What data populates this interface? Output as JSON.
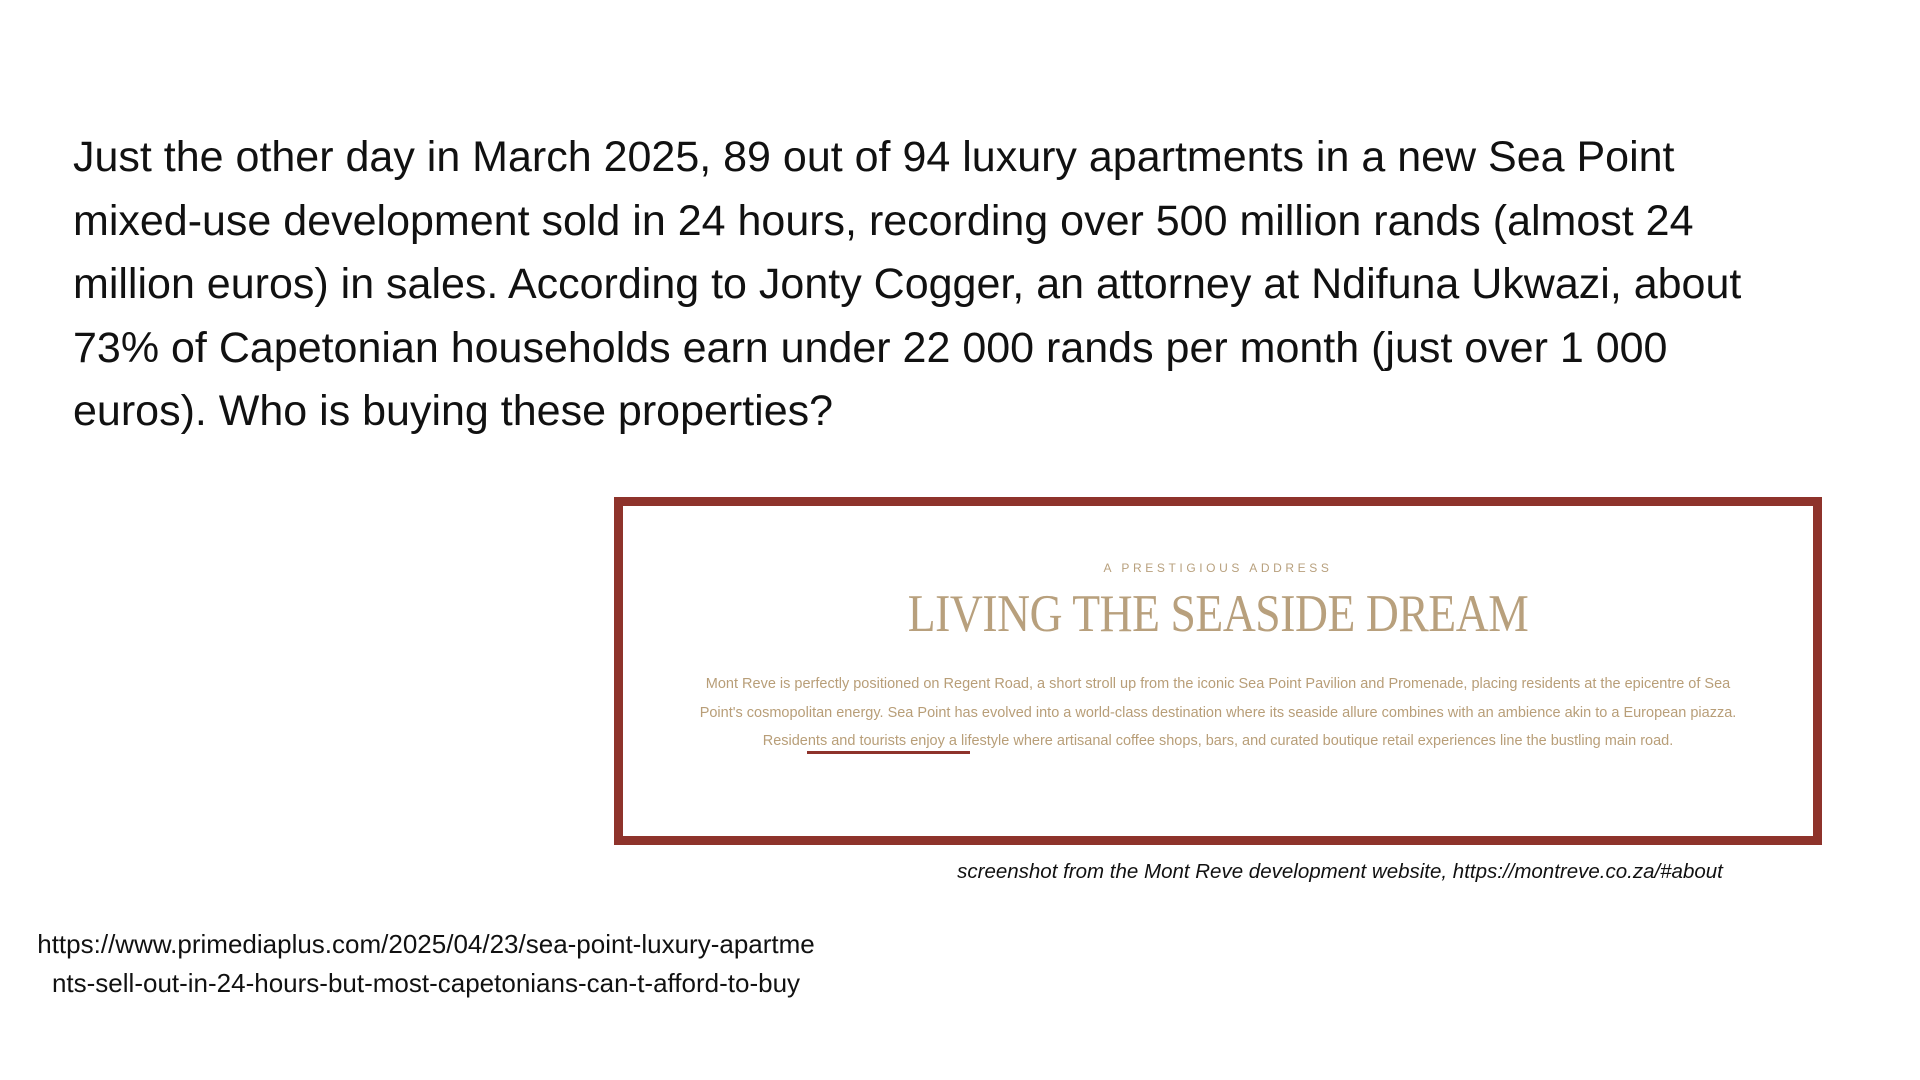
{
  "main_text": "Just the other day in March 2025, 89 out of 94 luxury apartments in a new Sea Point mixed-use development sold in 24 hours, recording over 500 million rands (almost 24 million euros) in sales. According to Jonty Cogger, an attorney at Ndifuna Ukwazi, about 73% of Capetonian households earn under 22 000 rands per month (just over 1 000 euros). Who is buying these properties?",
  "embedded_screenshot": {
    "eyebrow": "A PRESTIGIOUS ADDRESS",
    "heading": "LIVING THE SEASIDE DREAM",
    "body": "Mont Reve is perfectly positioned on Regent Road, a short stroll up from the iconic Sea Point Pavilion and Promenade, placing residents at the epicentre of Sea Point's cosmopolitan energy. Sea Point has evolved into a world-class destination where its seaside allure combines with an ambience akin to a European piazza. Residents and tourists enjoy a lifestyle where artisanal coffee shops, bars, and curated boutique retail experiences line the bustling main road.",
    "frame_color": "#8e332b",
    "text_color": "#b8a07d"
  },
  "caption": "screenshot from the Mont Reve development website, https://montreve.co.za/#about",
  "source_url": "https://www.primediaplus.com/2025/04/23/sea-point-luxury-apartments-sell-out-in-24-hours-but-most-capetonians-can-t-afford-to-buy"
}
